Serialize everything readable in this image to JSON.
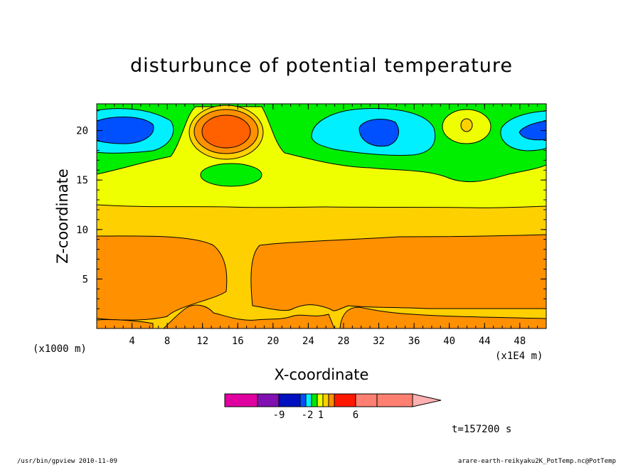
{
  "chart_data": {
    "type": "heatmap",
    "title": "disturbunce of potential temperature",
    "xlabel": "X-coordinate",
    "ylabel": "Z-coordinate",
    "x_unit": "(x1E4 m)",
    "y_unit": "(x1000 m)",
    "xlim": [
      0,
      51
    ],
    "ylim": [
      0,
      22.7
    ],
    "xticks": [
      4,
      8,
      12,
      16,
      20,
      24,
      28,
      32,
      36,
      40,
      44,
      48
    ],
    "yticks": [
      5,
      10,
      15,
      20
    ],
    "colorbar": {
      "ticks": [
        "-9",
        "-2",
        "1",
        "6"
      ],
      "colors": [
        "#e000a0",
        "#8010b0",
        "#0010c0",
        "#0050ff",
        "#00f0ff",
        "#00e800",
        "#f0ff00",
        "#ffd000",
        "#ff9000",
        "#ff1800",
        "#ff8070",
        "#ffb0b0"
      ]
    },
    "time_label": "t=157200 s",
    "regions": [
      {
        "level": "orange",
        "description": "lower layer z 0-9.5"
      },
      {
        "level": "light-orange",
        "description": "z 9.5-12.5"
      },
      {
        "level": "yellow",
        "description": "z 12.5-17"
      },
      {
        "level": "green",
        "description": "upper layer z 17-22.7"
      },
      {
        "level": "cyan-blue",
        "description": "cold cells near z 20 at x 2-6, 30-38, 48-51"
      },
      {
        "level": "red-orange",
        "description": "warm cell at x 13-17, z 19-21"
      }
    ]
  },
  "footer": {
    "left": "/usr/bin/gpview  2010-11-09",
    "right": "arare-earth-reikyaku2K_PotTemp.nc@PotTemp"
  }
}
